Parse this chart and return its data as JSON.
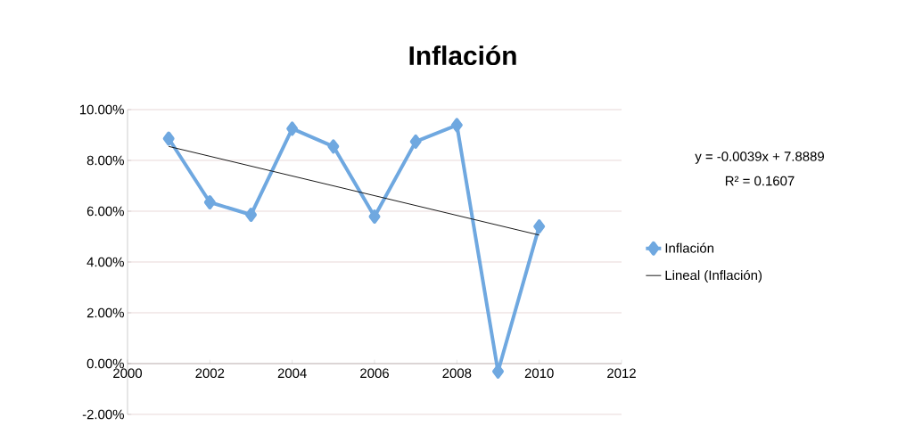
{
  "chart_data": {
    "type": "line",
    "title": "Inflación",
    "x": [
      2001,
      2002,
      2003,
      2004,
      2005,
      2006,
      2007,
      2008,
      2009,
      2010
    ],
    "series": [
      {
        "name": "Inflación",
        "color": "#6fa8e0",
        "values": [
          8.86,
          6.35,
          5.86,
          9.25,
          8.55,
          5.79,
          8.74,
          9.39,
          -0.31,
          5.4
        ],
        "marker": "diamond"
      },
      {
        "name": "Lineal (Inflación)",
        "color": "#1a1a1a",
        "type": "line",
        "x": [
          2001,
          2010
        ],
        "values": [
          8.55,
          5.06
        ],
        "marker": "none"
      }
    ],
    "xlim": [
      2000,
      2012
    ],
    "xticks": [
      2000,
      2002,
      2004,
      2006,
      2008,
      2010,
      2012
    ],
    "ylim": [
      -2,
      10
    ],
    "yticks": [
      {
        "value": -2,
        "label": "-2.00%"
      },
      {
        "value": 0,
        "label": "0.00%"
      },
      {
        "value": 2,
        "label": "2.00%"
      },
      {
        "value": 4,
        "label": "4.00%"
      },
      {
        "value": 6,
        "label": "6.00%"
      },
      {
        "value": 8,
        "label": "8.00%"
      },
      {
        "value": 10,
        "label": "10.00%"
      }
    ],
    "annotations": [
      "y = -0.0039x + 7.8889",
      "R² = 0.1607"
    ],
    "grid": "y",
    "legend": "right",
    "line_style": "solid"
  }
}
